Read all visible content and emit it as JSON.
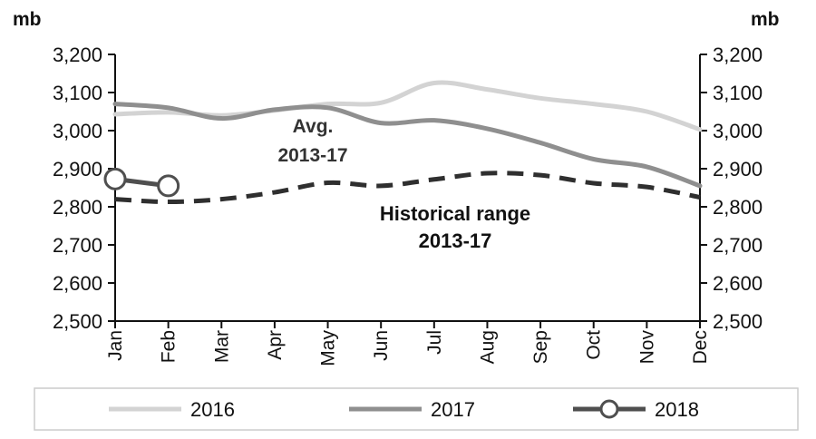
{
  "chart_data": {
    "type": "line",
    "y_unit_left": "mb",
    "y_unit_right": "mb",
    "ylim": [
      2500,
      3200
    ],
    "yticks": [
      "2,500",
      "2,600",
      "2,700",
      "2,800",
      "2,900",
      "3,000",
      "3,100",
      "3,200"
    ],
    "categories": [
      "Jan",
      "Feb",
      "Mar",
      "Apr",
      "May",
      "Jun",
      "Jul",
      "Aug",
      "Sep",
      "Oct",
      "Nov",
      "Dec"
    ],
    "series": [
      {
        "name": "2016",
        "color": "#d3d3d3",
        "marker": "none",
        "values": [
          3043,
          3048,
          3040,
          3053,
          3070,
          3073,
          3125,
          3108,
          3085,
          3070,
          3050,
          3003
        ]
      },
      {
        "name": "2017",
        "color": "#8f8f8f",
        "marker": "none",
        "values": [
          3070,
          3060,
          3032,
          3055,
          3060,
          3020,
          3027,
          3005,
          2968,
          2925,
          2905,
          2855
        ]
      },
      {
        "name": "2018",
        "color": "#4f4f4f",
        "marker": "circle",
        "values": [
          2873,
          2855,
          null,
          null,
          null,
          null,
          null,
          null,
          null,
          null,
          null,
          null
        ]
      },
      {
        "name": "Avg. 2013-17",
        "color": "#2f2f2f",
        "style": "dashed",
        "legend": false,
        "values": [
          2820,
          2813,
          2820,
          2838,
          2863,
          2855,
          2872,
          2888,
          2883,
          2862,
          2852,
          2825
        ]
      }
    ],
    "annotations": {
      "avg_line1": "Avg.",
      "avg_line2": "2013-17",
      "range_line1": "Historical range",
      "range_line2": "2013-17"
    },
    "legend": {
      "position": "bottom",
      "items": [
        "2016",
        "2017",
        "2018"
      ]
    },
    "grid": false
  }
}
